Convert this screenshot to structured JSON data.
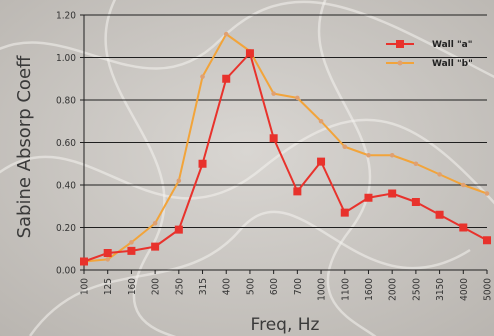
{
  "chart_data": {
    "type": "line",
    "xlabel": "Freq, Hz",
    "ylabel": "Sabine Absorp Coeff",
    "ylim": [
      0,
      1.2
    ],
    "yticks": [
      "0.00",
      "0.20",
      "0.40",
      "0.60",
      "0.80",
      "1.00",
      "1.20"
    ],
    "categories": [
      "100",
      "125",
      "160",
      "200",
      "250",
      "315",
      "400",
      "500",
      "600",
      "700",
      "1000",
      "1100",
      "1600",
      "2000",
      "2500",
      "3150",
      "4000",
      "5000"
    ],
    "grid": true,
    "legend_position": "top-right",
    "series": [
      {
        "name": "Wall \"a\"",
        "color": "#e8322c",
        "marker": "square",
        "values": [
          0.04,
          0.08,
          0.09,
          0.11,
          0.19,
          0.5,
          0.9,
          1.02,
          0.62,
          0.37,
          0.51,
          0.27,
          0.34,
          0.36,
          0.32,
          0.26,
          0.2,
          0.14
        ]
      },
      {
        "name": "Wall \"b\"",
        "color": "#f2a43a",
        "marker": "dot",
        "values": [
          0.04,
          0.05,
          0.13,
          0.22,
          0.42,
          0.91,
          1.11,
          1.03,
          0.83,
          0.81,
          0.7,
          0.58,
          0.54,
          0.54,
          0.5,
          0.45,
          0.4,
          0.36
        ]
      }
    ]
  }
}
